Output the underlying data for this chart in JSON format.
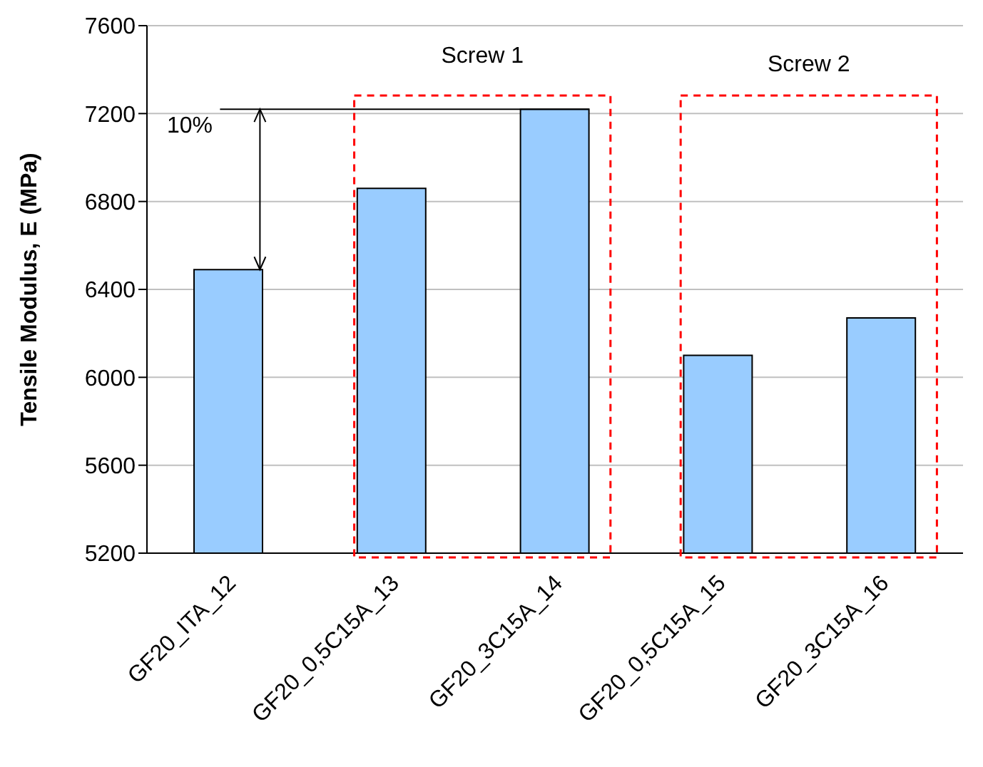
{
  "chart_data": {
    "type": "bar",
    "ylabel": "Tensile Modulus, E (MPa)",
    "categories": [
      "GF20_ITA_12",
      "GF20_0,5C15A_13",
      "GF20_3C15A_14",
      "GF20_0,5C15A_15",
      "GF20_3C15A_16"
    ],
    "values": [
      6490,
      6860,
      7220,
      6100,
      6270
    ],
    "color": "#99ccff",
    "ylim": [
      5200,
      7600
    ],
    "yticks": [
      5200,
      5600,
      6000,
      6400,
      6800,
      7200,
      7600
    ],
    "grid": "y",
    "annotations": [
      "Screw 1",
      "Screw 2",
      "10%"
    ]
  }
}
